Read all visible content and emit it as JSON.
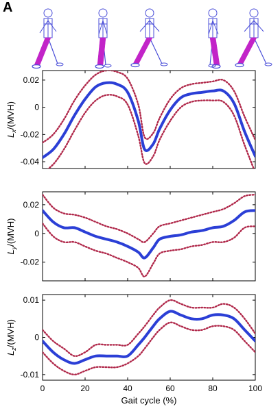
{
  "panel_label": "A",
  "colors": {
    "mean_line": "#2b3fd6",
    "bound_line": "#b0284a",
    "frame": "#000000",
    "figure_body": "#4a4ed8",
    "figure_leg": "#c224c8"
  },
  "walking_figures": {
    "count": 5,
    "icon": "walking-stick-figure-icon"
  },
  "chart_data": [
    {
      "type": "line",
      "ylabel_main": "L",
      "ylabel_sub": "x",
      "ylabel_unit": "/(MVH)",
      "xlim": [
        0,
        100
      ],
      "ylim": [
        -0.045,
        0.027
      ],
      "yticks": [
        0.02,
        0,
        -0.02,
        -0.04
      ],
      "ytick_labels": [
        "0.02",
        "0",
        "-0.02",
        "-0.04"
      ],
      "x": [
        0,
        5,
        10,
        15,
        20,
        25,
        30,
        35,
        40,
        45,
        48,
        52,
        55,
        60,
        65,
        70,
        75,
        80,
        85,
        90,
        95,
        100
      ],
      "series": [
        {
          "style": "mean",
          "values": [
            -0.037,
            -0.031,
            -0.02,
            -0.006,
            0.006,
            0.015,
            0.018,
            0.017,
            0.011,
            -0.01,
            -0.031,
            -0.027,
            -0.016,
            -0.002,
            0.007,
            0.01,
            0.011,
            0.012,
            0.012,
            0.003,
            -0.018,
            -0.036
          ]
        },
        {
          "style": "bound",
          "values": [
            -0.026,
            -0.02,
            -0.009,
            0.005,
            0.016,
            0.024,
            0.027,
            0.026,
            0.021,
            0.002,
            -0.022,
            -0.019,
            -0.008,
            0.006,
            0.014,
            0.017,
            0.018,
            0.019,
            0.02,
            0.012,
            -0.007,
            -0.024
          ]
        },
        {
          "style": "bound",
          "values": [
            -0.048,
            -0.042,
            -0.031,
            -0.017,
            -0.004,
            0.005,
            0.009,
            0.008,
            0.002,
            -0.021,
            -0.041,
            -0.036,
            -0.024,
            -0.01,
            0.0,
            0.004,
            0.005,
            0.005,
            0.004,
            -0.006,
            -0.028,
            -0.048
          ]
        }
      ]
    },
    {
      "type": "line",
      "ylabel_main": "L",
      "ylabel_sub": "y",
      "ylabel_unit": "/(MVH)",
      "xlim": [
        0,
        100
      ],
      "ylim": [
        -0.033,
        0.029
      ],
      "yticks": [
        0.02,
        0,
        -0.02
      ],
      "ytick_labels": [
        "0.02",
        "0",
        "-0.02"
      ],
      "x": [
        0,
        5,
        10,
        15,
        20,
        25,
        30,
        35,
        40,
        45,
        48,
        52,
        55,
        60,
        65,
        70,
        75,
        80,
        85,
        90,
        95,
        100
      ],
      "series": [
        {
          "style": "mean",
          "values": [
            0.016,
            0.008,
            0.004,
            0.004,
            0.001,
            -0.002,
            -0.004,
            -0.006,
            -0.009,
            -0.013,
            -0.017,
            -0.01,
            -0.004,
            -0.002,
            -0.001,
            0.001,
            0.002,
            0.004,
            0.005,
            0.009,
            0.015,
            0.016
          ]
        },
        {
          "style": "bound",
          "values": [
            0.027,
            0.018,
            0.014,
            0.013,
            0.011,
            0.008,
            0.005,
            0.003,
            0.0,
            -0.004,
            -0.006,
            0.0,
            0.005,
            0.007,
            0.009,
            0.011,
            0.013,
            0.015,
            0.017,
            0.021,
            0.026,
            0.027
          ]
        },
        {
          "style": "bound",
          "values": [
            0.007,
            -0.002,
            -0.006,
            -0.006,
            -0.009,
            -0.012,
            -0.014,
            -0.017,
            -0.02,
            -0.024,
            -0.03,
            -0.021,
            -0.014,
            -0.012,
            -0.011,
            -0.009,
            -0.008,
            -0.006,
            -0.006,
            -0.003,
            0.004,
            0.005
          ]
        }
      ]
    },
    {
      "type": "line",
      "ylabel_main": "L",
      "ylabel_sub": "z",
      "ylabel_unit": "/(MVH)",
      "xlabel": "Gait cycle (%)",
      "xlim": [
        0,
        100
      ],
      "ylim": [
        -0.0115,
        0.0115
      ],
      "yticks": [
        0.01,
        0,
        -0.01
      ],
      "ytick_labels": [
        "0.01",
        "0",
        "-0.01"
      ],
      "xticks": [
        0,
        20,
        40,
        60,
        80,
        100
      ],
      "xtick_labels": [
        "0",
        "20",
        "40",
        "60",
        "80",
        "100"
      ],
      "x": [
        0,
        5,
        10,
        15,
        20,
        25,
        30,
        35,
        40,
        45,
        48,
        52,
        55,
        60,
        65,
        70,
        75,
        80,
        85,
        90,
        95,
        100
      ],
      "series": [
        {
          "style": "mean",
          "values": [
            -0.001,
            -0.004,
            -0.006,
            -0.007,
            -0.006,
            -0.005,
            -0.005,
            -0.005,
            -0.005,
            -0.002,
            0.0,
            0.003,
            0.005,
            0.007,
            0.006,
            0.005,
            0.005,
            0.006,
            0.006,
            0.005,
            0.002,
            -0.001
          ]
        },
        {
          "style": "bound",
          "values": [
            0.002,
            -0.001,
            -0.003,
            -0.005,
            -0.004,
            -0.002,
            -0.002,
            -0.002,
            -0.002,
            0.001,
            0.003,
            0.006,
            0.008,
            0.01,
            0.009,
            0.008,
            0.008,
            0.008,
            0.009,
            0.008,
            0.005,
            0.001
          ]
        },
        {
          "style": "bound",
          "values": [
            -0.004,
            -0.007,
            -0.009,
            -0.01,
            -0.009,
            -0.008,
            -0.008,
            -0.008,
            -0.007,
            -0.005,
            -0.003,
            0.0,
            0.002,
            0.004,
            0.003,
            0.002,
            0.002,
            0.003,
            0.003,
            0.002,
            -0.001,
            -0.004
          ]
        }
      ]
    }
  ]
}
